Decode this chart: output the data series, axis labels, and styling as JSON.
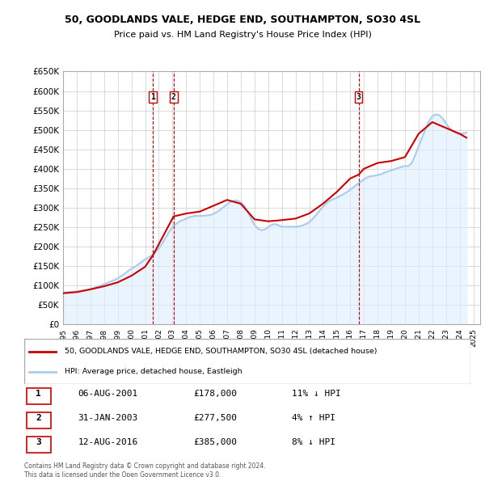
{
  "title": "50, GOODLANDS VALE, HEDGE END, SOUTHAMPTON, SO30 4SL",
  "subtitle": "Price paid vs. HM Land Registry's House Price Index (HPI)",
  "ylabel_ticks": [
    "£0",
    "£50K",
    "£100K",
    "£150K",
    "£200K",
    "£250K",
    "£300K",
    "£350K",
    "£400K",
    "£450K",
    "£500K",
    "£550K",
    "£600K",
    "£650K"
  ],
  "ytick_values": [
    0,
    50000,
    100000,
    150000,
    200000,
    250000,
    300000,
    350000,
    400000,
    450000,
    500000,
    550000,
    600000,
    650000
  ],
  "xlim_start": 1995.0,
  "xlim_end": 2025.5,
  "ylim_min": 0,
  "ylim_max": 650000,
  "background_color": "#ffffff",
  "grid_color": "#cccccc",
  "sale_line_color": "#cc0000",
  "hpi_line_color": "#aaccee",
  "hpi_fill_color": "#ddeeff",
  "vline_color": "#cc0000",
  "marker_color": "#cc0000",
  "transactions": [
    {
      "date_year": 2001.58,
      "price": 178000,
      "label": "1",
      "hpi_pct": "11% ↓ HPI",
      "date_str": "06-AUG-2001",
      "price_str": "£178,000"
    },
    {
      "date_year": 2003.08,
      "price": 277500,
      "label": "2",
      "hpi_pct": "4% ↑ HPI",
      "date_str": "31-JAN-2003",
      "price_str": "£277,500"
    },
    {
      "date_year": 2016.61,
      "price": 385000,
      "label": "3",
      "hpi_pct": "8% ↓ HPI",
      "date_str": "12-AUG-2016",
      "price_str": "£385,000"
    }
  ],
  "legend_entries": [
    {
      "label": "50, GOODLANDS VALE, HEDGE END, SOUTHAMPTON, SO30 4SL (detached house)",
      "color": "#cc0000",
      "lw": 2
    },
    {
      "label": "HPI: Average price, detached house, Eastleigh",
      "color": "#aaccee",
      "lw": 2
    }
  ],
  "footnote": "Contains HM Land Registry data © Crown copyright and database right 2024.\nThis data is licensed under the Open Government Licence v3.0.",
  "hpi_data_x": [
    1995.0,
    1995.25,
    1995.5,
    1995.75,
    1996.0,
    1996.25,
    1996.5,
    1996.75,
    1997.0,
    1997.25,
    1997.5,
    1997.75,
    1998.0,
    1998.25,
    1998.5,
    1998.75,
    1999.0,
    1999.25,
    1999.5,
    1999.75,
    2000.0,
    2000.25,
    2000.5,
    2000.75,
    2001.0,
    2001.25,
    2001.5,
    2001.75,
    2002.0,
    2002.25,
    2002.5,
    2002.75,
    2003.0,
    2003.25,
    2003.5,
    2003.75,
    2004.0,
    2004.25,
    2004.5,
    2004.75,
    2005.0,
    2005.25,
    2005.5,
    2005.75,
    2006.0,
    2006.25,
    2006.5,
    2006.75,
    2007.0,
    2007.25,
    2007.5,
    2007.75,
    2008.0,
    2008.25,
    2008.5,
    2008.75,
    2009.0,
    2009.25,
    2009.5,
    2009.75,
    2010.0,
    2010.25,
    2010.5,
    2010.75,
    2011.0,
    2011.25,
    2011.5,
    2011.75,
    2012.0,
    2012.25,
    2012.5,
    2012.75,
    2013.0,
    2013.25,
    2013.5,
    2013.75,
    2014.0,
    2014.25,
    2014.5,
    2014.75,
    2015.0,
    2015.25,
    2015.5,
    2015.75,
    2016.0,
    2016.25,
    2016.5,
    2016.75,
    2017.0,
    2017.25,
    2017.5,
    2017.75,
    2018.0,
    2018.25,
    2018.5,
    2018.75,
    2019.0,
    2019.25,
    2019.5,
    2019.75,
    2020.0,
    2020.25,
    2020.5,
    2020.75,
    2021.0,
    2021.25,
    2021.5,
    2021.75,
    2022.0,
    2022.25,
    2022.5,
    2022.75,
    2023.0,
    2023.25,
    2023.5,
    2023.75,
    2024.0,
    2024.25,
    2024.5
  ],
  "hpi_data_y": [
    82000,
    82500,
    83000,
    84000,
    84500,
    85500,
    87000,
    88500,
    91000,
    93500,
    96500,
    100000,
    103000,
    107000,
    111000,
    114000,
    118000,
    124000,
    130000,
    137000,
    143000,
    148000,
    154000,
    161000,
    167000,
    172000,
    178000,
    185000,
    195000,
    208000,
    223000,
    238000,
    250000,
    258000,
    264000,
    268000,
    272000,
    276000,
    278000,
    279000,
    279000,
    279000,
    280000,
    281000,
    284000,
    289000,
    295000,
    302000,
    309000,
    315000,
    318000,
    318000,
    314000,
    305000,
    290000,
    272000,
    256000,
    246000,
    242000,
    244000,
    250000,
    256000,
    258000,
    255000,
    251000,
    251000,
    251000,
    251000,
    251000,
    252000,
    254000,
    258000,
    263000,
    271000,
    281000,
    292000,
    302000,
    311000,
    318000,
    322000,
    325000,
    330000,
    335000,
    340000,
    346000,
    353000,
    360000,
    366000,
    373000,
    378000,
    381000,
    382000,
    384000,
    386000,
    390000,
    393000,
    396000,
    399000,
    402000,
    405000,
    407000,
    407000,
    415000,
    435000,
    458000,
    480000,
    502000,
    522000,
    535000,
    540000,
    538000,
    530000,
    517000,
    505000,
    497000,
    492000,
    490000,
    491000,
    493000
  ],
  "sale_data_x": [
    1995.0,
    1996.0,
    1997.0,
    1998.0,
    1999.0,
    2000.0,
    2001.0,
    2001.58,
    2003.08,
    2004.0,
    2005.0,
    2006.0,
    2007.0,
    2008.0,
    2009.0,
    2010.0,
    2011.0,
    2012.0,
    2013.0,
    2014.0,
    2015.0,
    2016.0,
    2016.61,
    2017.0,
    2018.0,
    2019.0,
    2020.0,
    2021.0,
    2022.0,
    2023.0,
    2024.0,
    2024.5
  ],
  "sale_data_y": [
    80000,
    83000,
    90000,
    98000,
    108000,
    125000,
    148000,
    178000,
    277500,
    285000,
    290000,
    305000,
    320000,
    310000,
    270000,
    265000,
    268000,
    272000,
    285000,
    310000,
    340000,
    375000,
    385000,
    400000,
    415000,
    420000,
    430000,
    490000,
    520000,
    505000,
    490000,
    480000
  ]
}
